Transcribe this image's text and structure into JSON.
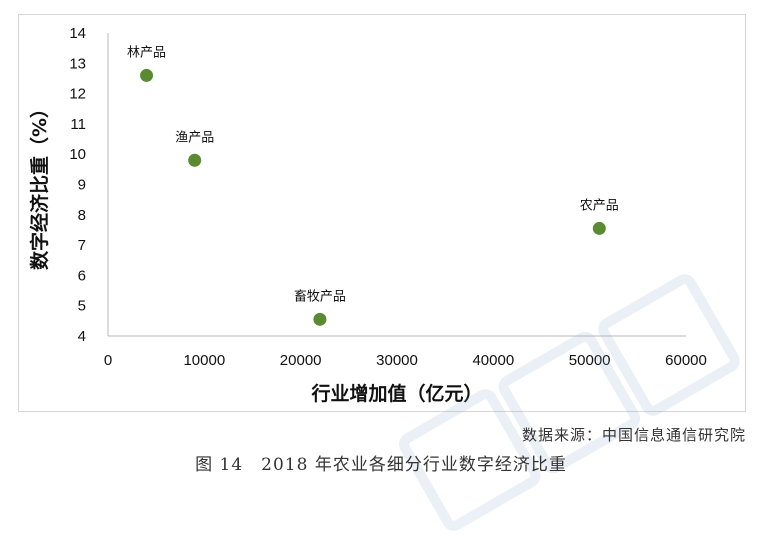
{
  "chart_data": {
    "type": "scatter",
    "title": "",
    "xlabel": "行业增加值（亿元）",
    "ylabel": "数字经济比重（%）",
    "xlim": [
      0,
      60000
    ],
    "ylim": [
      4,
      14
    ],
    "x_ticks": [
      "0",
      "10000",
      "20000",
      "30000",
      "40000",
      "50000",
      "60000"
    ],
    "y_ticks": [
      "4",
      "5",
      "6",
      "7",
      "8",
      "9",
      "10",
      "11",
      "12",
      "13",
      "14"
    ],
    "grid": false,
    "marker_color": "#5a8a32",
    "points": [
      {
        "label": "林产品",
        "x": 4000,
        "y": 12.6
      },
      {
        "label": "渔产品",
        "x": 9000,
        "y": 9.8
      },
      {
        "label": "畜牧产品",
        "x": 22000,
        "y": 4.55
      },
      {
        "label": "农产品",
        "x": 51000,
        "y": 7.55
      }
    ]
  },
  "source_note": "数据来源：中国信息通信研究院",
  "caption": "图 14　2018 年农业各细分行业数字经济比重"
}
